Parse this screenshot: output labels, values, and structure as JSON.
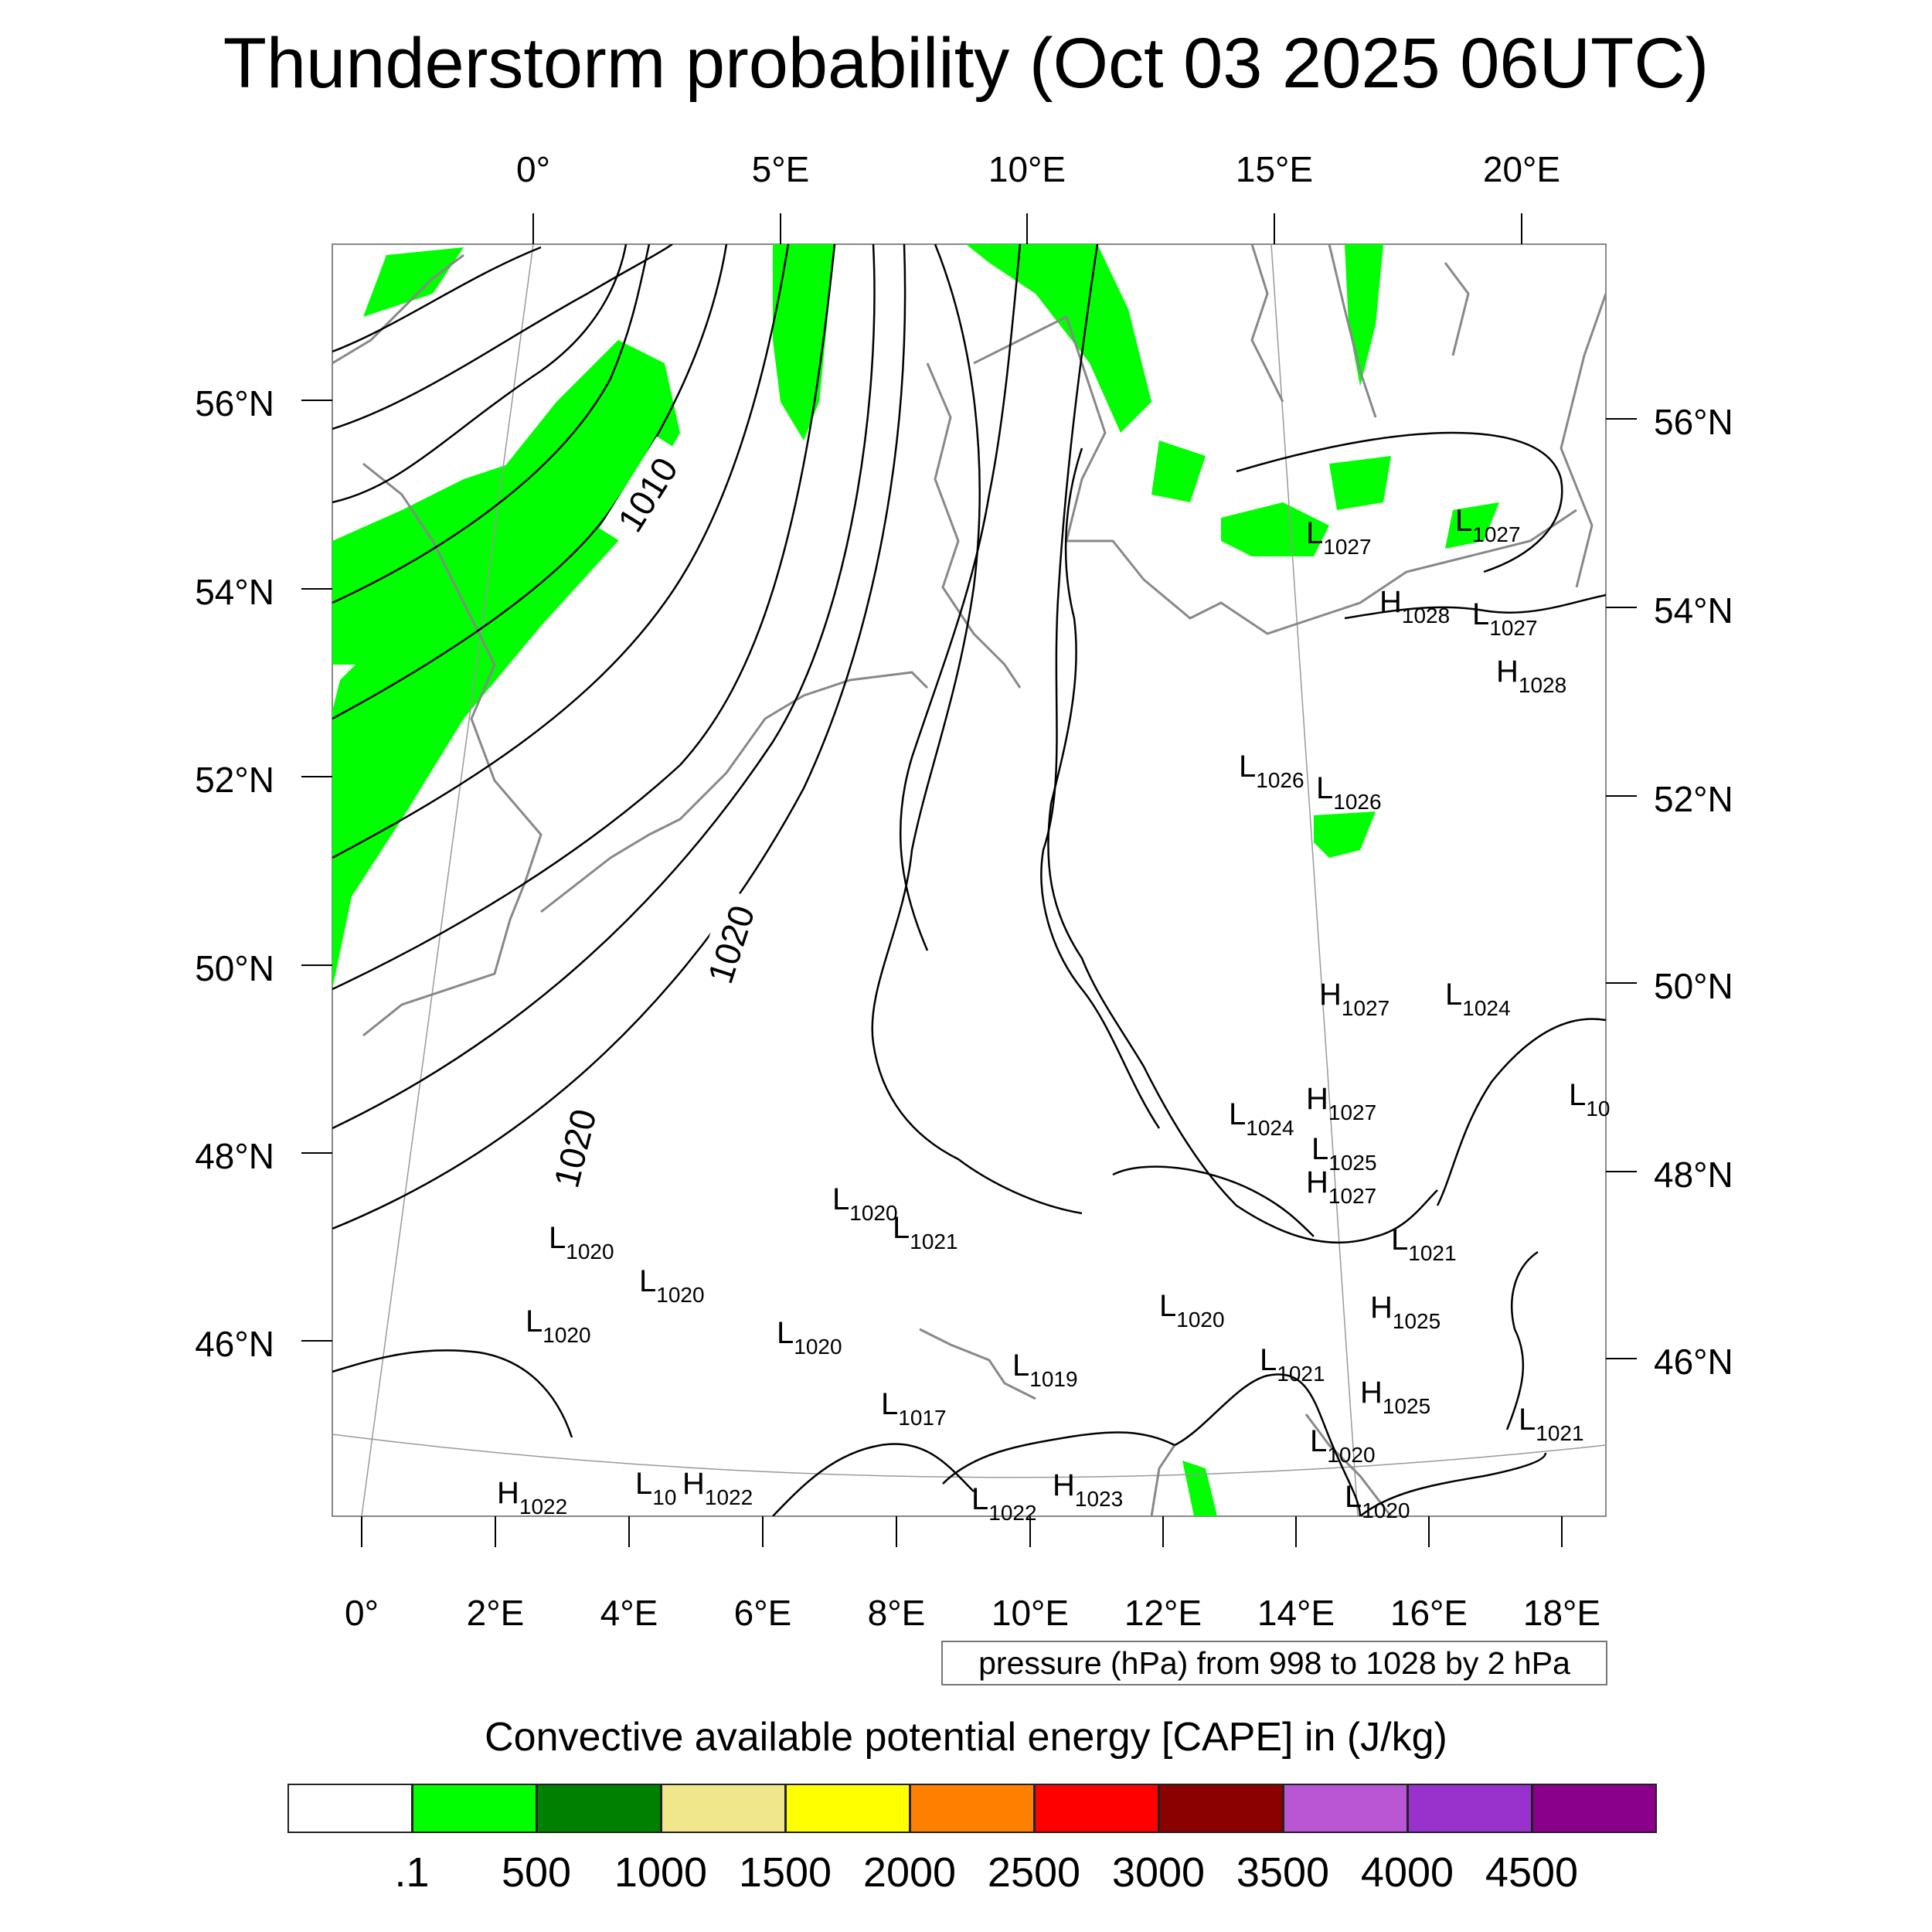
{
  "title": "Thunderstorm probability (Oct 03 2025 06UTC)",
  "top_lon_ticks": [
    "0°",
    "5°E",
    "10°E",
    "15°E",
    "20°E"
  ],
  "bottom_lon_ticks": [
    "0°",
    "2°E",
    "4°E",
    "6°E",
    "8°E",
    "10°E",
    "12°E",
    "14°E",
    "16°E",
    "18°E"
  ],
  "left_lat_ticks": [
    "56°N",
    "54°N",
    "52°N",
    "50°N",
    "48°N",
    "46°N"
  ],
  "right_lat_ticks": [
    "56°N",
    "54°N",
    "52°N",
    "50°N",
    "48°N",
    "46°N"
  ],
  "isobar_labels": [
    "1010",
    "1020",
    "1020"
  ],
  "pressure_note": "pressure (hPa) from 998 to 1028 by 2 hPa",
  "colorbar": {
    "title": "Convective available potential energy [CAPE] in (J/kg)",
    "colors": [
      "#ffffff",
      "#00ff00",
      "#008000",
      "#f0e68c",
      "#ffff00",
      "#ff8000",
      "#ff0000",
      "#8b0000",
      "#ba55d3",
      "#9932cc",
      "#8b008b"
    ],
    "labels": [
      ".1",
      "500",
      "1000",
      "1500",
      "2000",
      "2500",
      "3000",
      "3500",
      "4000",
      "4500"
    ]
  },
  "pressure_centers": [
    {
      "type": "L",
      "value": "1027"
    },
    {
      "type": "L",
      "value": "1027"
    },
    {
      "type": "H",
      "value": "1028"
    },
    {
      "type": "L",
      "value": "1027"
    },
    {
      "type": "H",
      "value": "1028"
    },
    {
      "type": "L",
      "value": "1026"
    },
    {
      "type": "L",
      "value": "1026"
    },
    {
      "type": "H",
      "value": "1027"
    },
    {
      "type": "L",
      "value": "1024"
    },
    {
      "type": "L",
      "value": "10"
    },
    {
      "type": "H",
      "value": "1027"
    },
    {
      "type": "L",
      "value": "1024"
    },
    {
      "type": "L",
      "value": "1025"
    },
    {
      "type": "H",
      "value": "1027"
    },
    {
      "type": "L",
      "value": "1020"
    },
    {
      "type": "L",
      "value": "1021"
    },
    {
      "type": "L",
      "value": "1021"
    },
    {
      "type": "L",
      "value": "1020"
    },
    {
      "type": "L",
      "value": "1020"
    },
    {
      "type": "L",
      "value": "1020"
    },
    {
      "type": "L",
      "value": "1020"
    },
    {
      "type": "H",
      "value": "1025"
    },
    {
      "type": "L",
      "value": "1020"
    },
    {
      "type": "L",
      "value": "1019"
    },
    {
      "type": "L",
      "value": "1021"
    },
    {
      "type": "H",
      "value": "1025"
    },
    {
      "type": "L",
      "value": "1017"
    },
    {
      "type": "L",
      "value": "1021"
    },
    {
      "type": "L",
      "value": "1020"
    },
    {
      "type": "H",
      "value": "1022"
    },
    {
      "type": "L",
      "value": "10"
    },
    {
      "type": "H",
      "value": "1022"
    },
    {
      "type": "L",
      "value": "1022"
    },
    {
      "type": "H",
      "value": "1023"
    },
    {
      "type": "L",
      "value": "1020"
    }
  ]
}
